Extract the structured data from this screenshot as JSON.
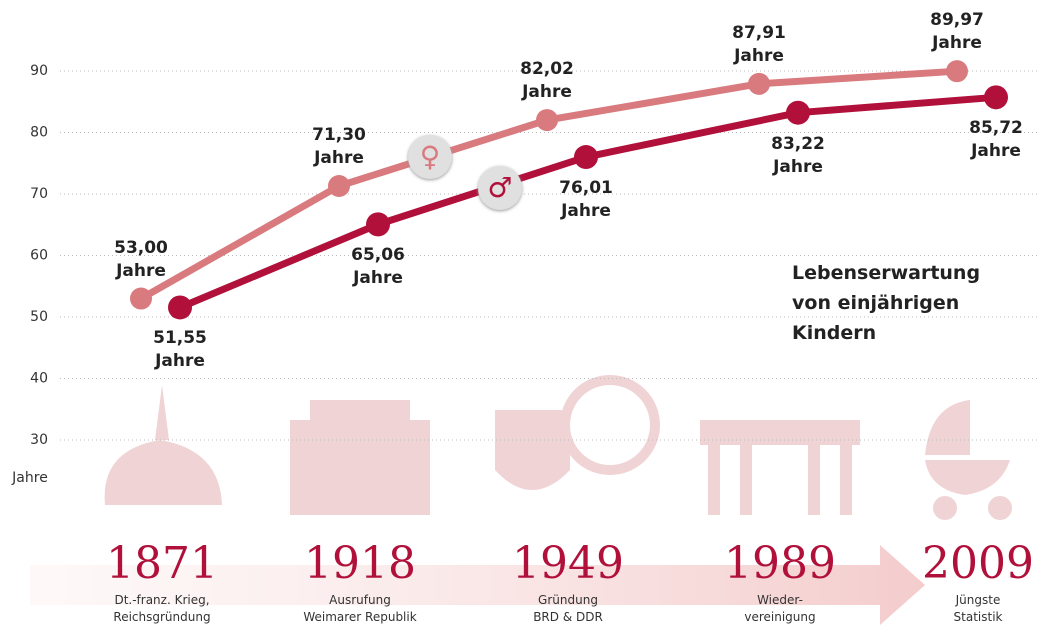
{
  "chart_data": {
    "type": "line",
    "title": "Lebenserwartung von einjährigen Kindern",
    "y_label": "Jahre",
    "categories": [
      "1871",
      "1918",
      "1949",
      "1989",
      "2009"
    ],
    "category_notes": [
      "Dt.-franz. Krieg,\nReichsgründung",
      "Ausrufung\nWeimarer Republik",
      "Gründung\nBRD & DDR",
      "Wieder-\nvereinigung",
      "Jüngste\nStatistik"
    ],
    "series": [
      {
        "name": "♀",
        "color": "#d97a7e",
        "values": [
          53.0,
          71.3,
          82.02,
          87.91,
          89.97
        ],
        "value_labels": [
          "53,00\nJahre",
          "71,30\nJahre",
          "82,02\nJahre",
          "87,91\nJahre",
          "89,97\nJahre"
        ]
      },
      {
        "name": "♂",
        "color": "#b0103a",
        "values": [
          51.55,
          65.06,
          76.01,
          83.22,
          85.72
        ],
        "value_labels": [
          "51,55\nJahre",
          "65,06\nJahre",
          "76,01\nJahre",
          "83,22\nJahre",
          "85,72\nJahre"
        ]
      }
    ],
    "ylim": [
      30,
      90
    ],
    "yticks": [
      30,
      40,
      50,
      60,
      70,
      80,
      90
    ],
    "grid": true
  }
}
